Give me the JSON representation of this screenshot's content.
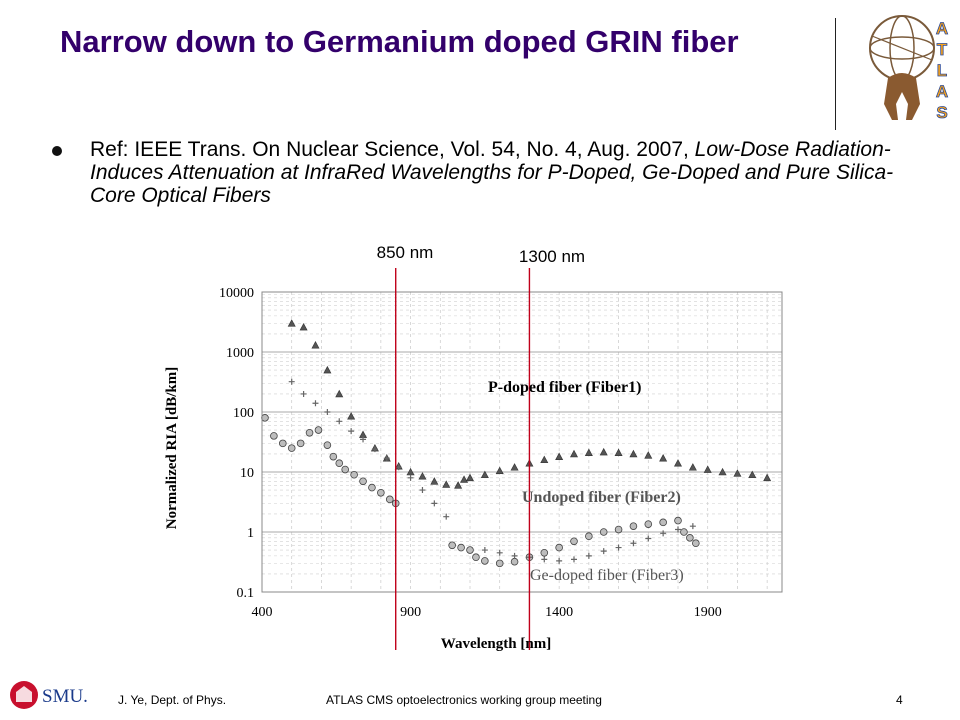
{
  "slide": {
    "title": "Narrow down to Germanium doped GRIN fiber",
    "bullet_prefix": "Ref: IEEE Trans. On Nuclear Science, Vol. 54, No. 4, Aug. 2007,",
    "bullet_italic": "Low-Dose Radiation-Induces Attenuation at InfraRed Wavelengths for P-Doped, Ge-Doped and Pure Silica-Core Optical Fibers",
    "marker_850": "850 nm",
    "marker_1300": "1300 nm"
  },
  "logos": {
    "atlas_letters": [
      "A",
      "T",
      "L",
      "A",
      "S"
    ],
    "smu_text": "SMU."
  },
  "footer": {
    "author": "J. Ye, Dept. of Phys.",
    "meeting": "ATLAS CMS optoelectronics working group meeting",
    "page": "4"
  },
  "colors": {
    "title": "#33006b",
    "marker_lines": "#c0001a",
    "atlas_orange": "#f7a21b"
  },
  "chart_data": {
    "type": "scatter",
    "xlabel": "Wavelength [nm]",
    "ylabel": "Normalized RIA [dB/km]",
    "xlim": [
      400,
      2150
    ],
    "ylim": [
      0.1,
      10000
    ],
    "yscale": "log",
    "xticks": [
      400,
      900,
      1400,
      1900
    ],
    "yticks": [
      0.1,
      1,
      10,
      100,
      1000,
      10000
    ],
    "ytick_labels": [
      "0.1",
      "1",
      "10",
      "100",
      "1000",
      "10000"
    ],
    "grid": true,
    "vertical_markers": [
      850,
      1300
    ],
    "series": [
      {
        "name": "P-doped fiber (Fiber1)",
        "marker": "triangle",
        "x": [
          500,
          540,
          580,
          620,
          660,
          700,
          740,
          780,
          820,
          860,
          900,
          940,
          980,
          1020,
          1060,
          1080,
          1100,
          1150,
          1200,
          1250,
          1300,
          1350,
          1400,
          1450,
          1500,
          1550,
          1600,
          1650,
          1700,
          1750,
          1800,
          1850,
          1900,
          1950,
          2000,
          2050,
          2100
        ],
        "y": [
          3000,
          2600,
          1300,
          500,
          200,
          85,
          42,
          25,
          17,
          12.5,
          10,
          8.5,
          7,
          6.2,
          6,
          7.5,
          8,
          9,
          10.5,
          12,
          14,
          16,
          18,
          20,
          21,
          21.5,
          21,
          20,
          19,
          17,
          14,
          12,
          11,
          10,
          9.5,
          9,
          8
        ]
      },
      {
        "name": "Undoped fiber (Fiber2)",
        "marker": "circle",
        "x": [
          410,
          440,
          470,
          500,
          530,
          560,
          590,
          620,
          640,
          660,
          680,
          710,
          740,
          770,
          800,
          830,
          850,
          1040,
          1070,
          1100,
          1120,
          1150,
          1200,
          1250,
          1300,
          1350,
          1400,
          1450,
          1500,
          1550,
          1600,
          1650,
          1700,
          1750,
          1800,
          1820,
          1840,
          1860
        ],
        "y": [
          80,
          40,
          30,
          25,
          30,
          45,
          50,
          28,
          18,
          14,
          11,
          9,
          7,
          5.5,
          4.5,
          3.5,
          3,
          0.6,
          0.55,
          0.5,
          0.38,
          0.33,
          0.3,
          0.32,
          0.38,
          0.45,
          0.55,
          0.7,
          0.85,
          1,
          1.1,
          1.25,
          1.35,
          1.45,
          1.55,
          1,
          0.8,
          0.65
        ]
      },
      {
        "name": "Ge-doped fiber (Fiber3)",
        "marker": "plus",
        "x": [
          500,
          540,
          580,
          620,
          660,
          700,
          740,
          780,
          820,
          860,
          900,
          940,
          980,
          1020,
          1150,
          1200,
          1250,
          1300,
          1350,
          1400,
          1450,
          1500,
          1550,
          1600,
          1650,
          1700,
          1750,
          1800,
          1850
        ],
        "y": [
          320,
          200,
          140,
          100,
          70,
          48,
          35,
          24,
          17,
          12,
          8,
          5,
          3,
          1.8,
          0.5,
          0.45,
          0.4,
          0.38,
          0.35,
          0.33,
          0.35,
          0.4,
          0.48,
          0.55,
          0.65,
          0.78,
          0.95,
          1.1,
          1.25
        ]
      }
    ]
  }
}
